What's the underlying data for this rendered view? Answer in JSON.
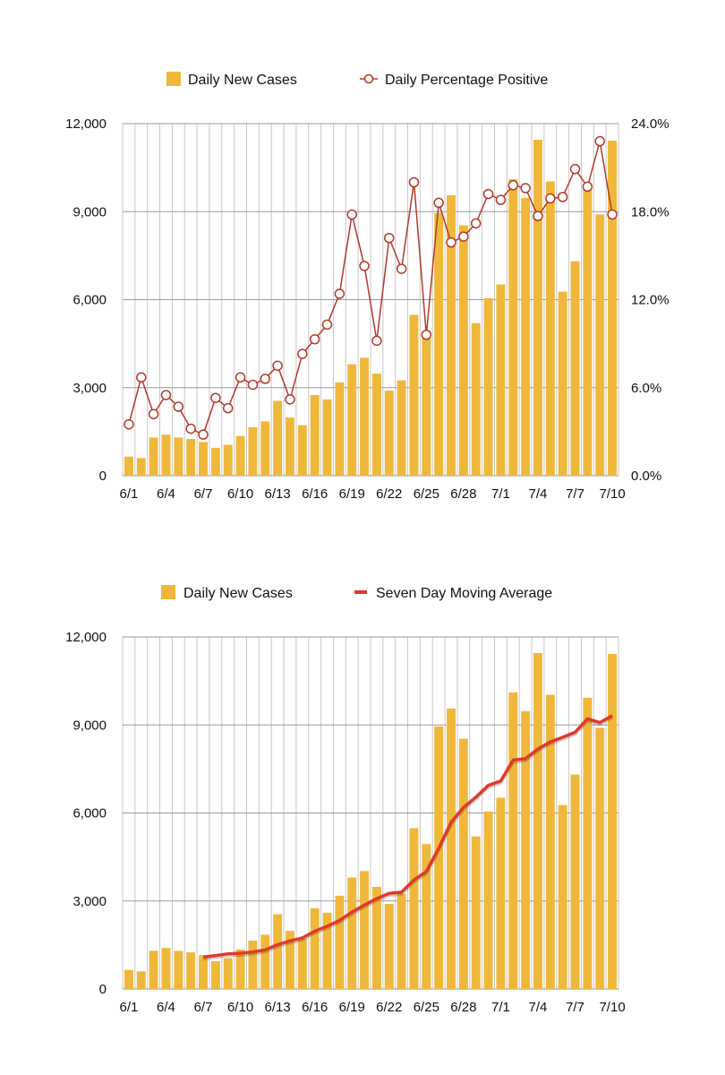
{
  "chart_data": [
    {
      "type": "bar",
      "title": "",
      "legend": {
        "bars": "Daily New Cases",
        "line": "Daily Percentage Positive"
      },
      "categories": [
        "6/1",
        "6/2",
        "6/3",
        "6/4",
        "6/5",
        "6/6",
        "6/7",
        "6/8",
        "6/9",
        "6/10",
        "6/11",
        "6/12",
        "6/13",
        "6/14",
        "6/15",
        "6/16",
        "6/17",
        "6/18",
        "6/19",
        "6/20",
        "6/21",
        "6/22",
        "6/23",
        "6/24",
        "6/25",
        "6/26",
        "6/27",
        "6/28",
        "6/29",
        "6/30",
        "7/1",
        "7/2",
        "7/3",
        "7/4",
        "7/5",
        "7/6",
        "7/7",
        "7/8",
        "7/9",
        "7/10"
      ],
      "x_tick_labels": [
        "6/1",
        "6/4",
        "6/7",
        "6/10",
        "6/13",
        "6/16",
        "6/19",
        "6/22",
        "6/25",
        "6/28",
        "7/1",
        "7/4",
        "7/7",
        "7/10"
      ],
      "series": [
        {
          "name": "Daily New Cases",
          "axis": "left",
          "color": "#f0b83a",
          "values": [
            650,
            600,
            1300,
            1400,
            1300,
            1250,
            1150,
            950,
            1050,
            1350,
            1650,
            1850,
            2550,
            1980,
            1720,
            2750,
            2600,
            3180,
            3800,
            4020,
            3480,
            2900,
            3250,
            5480,
            4940,
            8950,
            9560,
            8530,
            5200,
            6050,
            6520,
            10110,
            9470,
            11450,
            10030,
            6270,
            7310,
            9930,
            8900,
            11420
          ]
        },
        {
          "name": "Daily Percentage Positive",
          "axis": "right",
          "color": "#b23a2a",
          "values": [
            3.5,
            6.7,
            4.2,
            5.5,
            4.7,
            3.2,
            2.8,
            5.3,
            4.6,
            6.7,
            6.2,
            6.6,
            7.5,
            5.2,
            8.3,
            9.3,
            10.3,
            12.4,
            17.8,
            14.3,
            9.2,
            16.2,
            14.1,
            20.0,
            9.6,
            18.6,
            15.9,
            16.3,
            17.2,
            19.2,
            18.8,
            19.8,
            19.6,
            17.7,
            18.9,
            19.0,
            20.9,
            19.7,
            22.8,
            17.8
          ]
        }
      ],
      "left_axis": {
        "ylim": [
          0,
          12000
        ],
        "ticks": [
          "0",
          "3,000",
          "6,000",
          "9,000",
          "12,000"
        ]
      },
      "right_axis": {
        "ylim": [
          0,
          24
        ],
        "ticks": [
          "0.0%",
          "6.0%",
          "12.0%",
          "18.0%",
          "24.0%"
        ]
      }
    },
    {
      "type": "bar",
      "title": "",
      "legend": {
        "bars": "Daily New Cases",
        "line": "Seven Day Moving Average"
      },
      "categories": [
        "6/1",
        "6/2",
        "6/3",
        "6/4",
        "6/5",
        "6/6",
        "6/7",
        "6/8",
        "6/9",
        "6/10",
        "6/11",
        "6/12",
        "6/13",
        "6/14",
        "6/15",
        "6/16",
        "6/17",
        "6/18",
        "6/19",
        "6/20",
        "6/21",
        "6/22",
        "6/23",
        "6/24",
        "6/25",
        "6/26",
        "6/27",
        "6/28",
        "6/29",
        "6/30",
        "7/1",
        "7/2",
        "7/3",
        "7/4",
        "7/5",
        "7/6",
        "7/7",
        "7/8",
        "7/9",
        "7/10"
      ],
      "x_tick_labels": [
        "6/1",
        "6/4",
        "6/7",
        "6/10",
        "6/13",
        "6/16",
        "6/19",
        "6/22",
        "6/25",
        "6/28",
        "7/1",
        "7/4",
        "7/7",
        "7/10"
      ],
      "series": [
        {
          "name": "Daily New Cases",
          "color": "#f0b83a",
          "values": [
            650,
            600,
            1300,
            1400,
            1300,
            1250,
            1150,
            950,
            1050,
            1350,
            1650,
            1850,
            2550,
            1980,
            1720,
            2750,
            2600,
            3180,
            3800,
            4020,
            3480,
            2900,
            3250,
            5480,
            4940,
            8950,
            9560,
            8530,
            5200,
            6050,
            6520,
            10110,
            9470,
            11450,
            10030,
            6270,
            7310,
            9930,
            8900,
            11420
          ]
        },
        {
          "name": "Seven Day Moving Average",
          "color": "#e03a2a",
          "values": [
            null,
            null,
            null,
            null,
            null,
            null,
            1090,
            1140,
            1200,
            1220,
            1260,
            1330,
            1510,
            1640,
            1740,
            1970,
            2140,
            2340,
            2620,
            2860,
            3080,
            3260,
            3300,
            3720,
            4000,
            4800,
            5680,
            6190,
            6540,
            6940,
            7090,
            7800,
            7850,
            8180,
            8420,
            8580,
            8750,
            9210,
            9080,
            9320
          ]
        }
      ],
      "ylim": [
        0,
        12000
      ],
      "left_axis": {
        "ticks": [
          "0",
          "3,000",
          "6,000",
          "9,000",
          "12,000"
        ]
      }
    }
  ]
}
